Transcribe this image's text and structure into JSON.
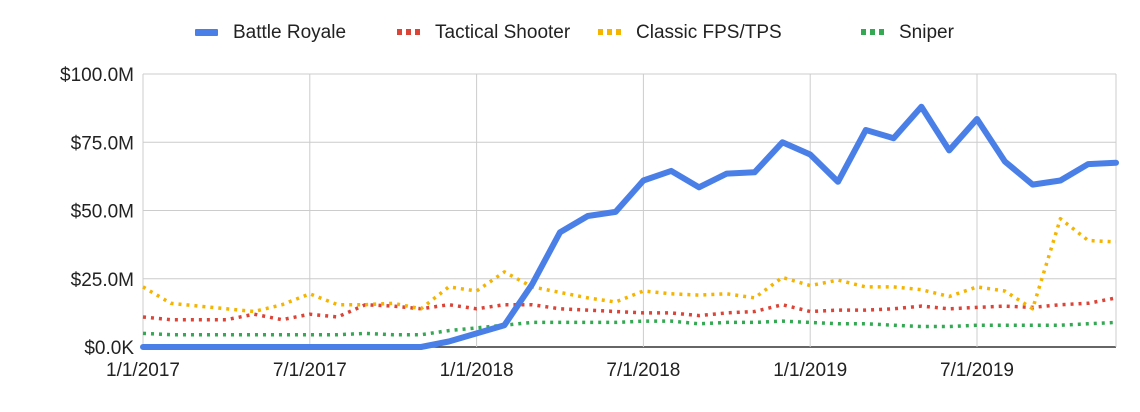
{
  "chart_data": {
    "type": "line",
    "title": "",
    "xlabel": "",
    "ylabel": "",
    "x": [
      "2017-01",
      "2017-02",
      "2017-03",
      "2017-04",
      "2017-05",
      "2017-06",
      "2017-07",
      "2017-08",
      "2017-09",
      "2017-10",
      "2017-11",
      "2017-12",
      "2018-01",
      "2018-02",
      "2018-03",
      "2018-04",
      "2018-05",
      "2018-06",
      "2018-07",
      "2018-08",
      "2018-09",
      "2018-10",
      "2018-11",
      "2018-12",
      "2019-01",
      "2019-02",
      "2019-03",
      "2019-04",
      "2019-05",
      "2019-06",
      "2019-07",
      "2019-08",
      "2019-09",
      "2019-10",
      "2019-11",
      "2019-12"
    ],
    "x_ticks": [
      "1/1/2017",
      "7/1/2017",
      "1/1/2018",
      "7/1/2018",
      "1/1/2019",
      "7/1/2019"
    ],
    "y_ticks": [
      "$0.0K",
      "$25.0M",
      "$50.0M",
      "$75.0M",
      "$100.0M"
    ],
    "ylim": [
      0,
      100
    ],
    "y_unit": "$M",
    "grid": true,
    "legend_position": "top",
    "series": [
      {
        "name": "Battle Royale",
        "color": "#4a7fe8",
        "style": "solid",
        "values": [
          0,
          0,
          0,
          0,
          0,
          0,
          0,
          0,
          0,
          0,
          0,
          2,
          5,
          8,
          23,
          42,
          48,
          49.5,
          61,
          64.5,
          58.5,
          63.5,
          64,
          75,
          70.5,
          60.5,
          79.5,
          76.5,
          88,
          72,
          83.5,
          68,
          59.5,
          61,
          67,
          67.5
        ]
      },
      {
        "name": "Tactical Shooter",
        "color": "#db4437",
        "style": "dotted",
        "values": [
          11,
          10,
          10,
          10,
          12,
          10,
          12,
          11,
          15.5,
          15,
          14,
          15.5,
          14,
          15.5,
          15.5,
          14,
          13.5,
          13,
          12.5,
          12.5,
          11.5,
          12.5,
          13,
          15.5,
          13,
          13.5,
          13.5,
          14,
          15,
          14,
          14.5,
          15,
          14.5,
          15.5,
          16,
          18
        ]
      },
      {
        "name": "Classic FPS/TPS",
        "color": "#f4b400",
        "style": "dotted",
        "values": [
          22,
          16,
          15,
          14,
          13,
          15.5,
          19.5,
          15.5,
          15.5,
          16,
          14,
          22,
          20.5,
          27.5,
          22,
          20,
          18,
          16.5,
          20.5,
          19.5,
          19,
          19.5,
          18,
          25.5,
          22.5,
          24.5,
          22,
          22,
          21,
          18.5,
          22,
          20.5,
          14,
          47,
          39,
          38.5
        ]
      },
      {
        "name": "Sniper",
        "color": "#34a853",
        "style": "dotted",
        "values": [
          5,
          4.5,
          4.5,
          4.5,
          4.5,
          4.5,
          4.5,
          4.5,
          5,
          4.5,
          4.5,
          6,
          7,
          8,
          9,
          9,
          9,
          9,
          9.5,
          9.5,
          8.5,
          9,
          9,
          9.5,
          9,
          8.5,
          8.5,
          8,
          7.5,
          7.5,
          8,
          8,
          8,
          8,
          8.5,
          9
        ]
      }
    ]
  }
}
